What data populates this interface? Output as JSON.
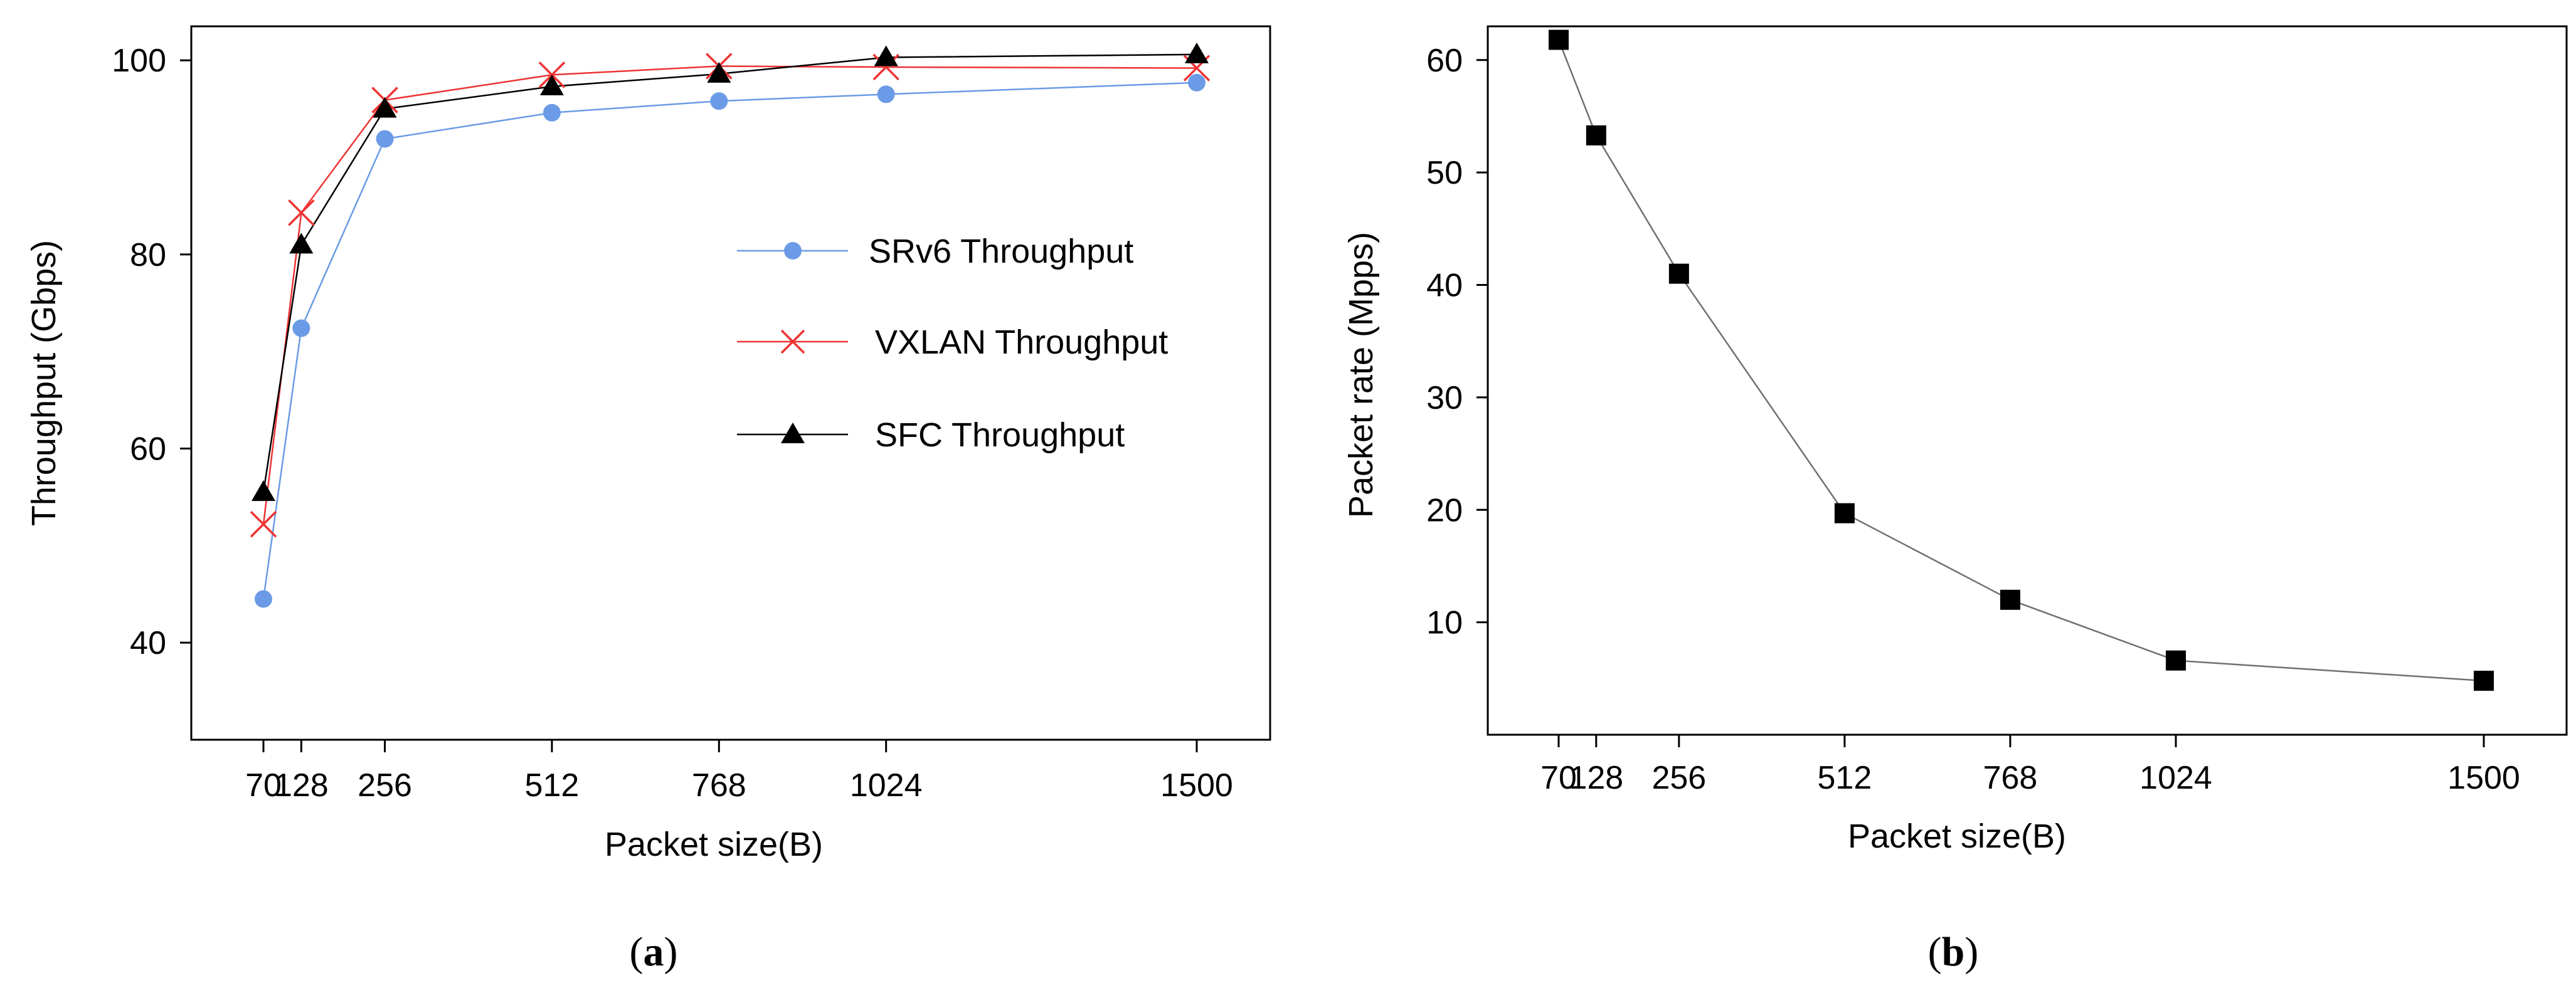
{
  "chart_data": [
    {
      "type": "line",
      "caption": {
        "open": "(",
        "letter": "a",
        "close": ")"
      },
      "xlabel": "Packet size(B)",
      "ylabel": "Throughput (Gbps)",
      "categories": [
        "70",
        "128",
        "256",
        "512",
        "768",
        "1024",
        "1500"
      ],
      "x": [
        70,
        128,
        256,
        512,
        768,
        1024,
        1500
      ],
      "ylim": [
        30,
        103.5
      ],
      "yticks": [
        40,
        60,
        80,
        100
      ],
      "grid": false,
      "legend_position": "right-center",
      "series": [
        {
          "name": "SRv6 Throughput",
          "marker": "circle",
          "color": "#6b9be6",
          "values": [
            44.5,
            72.4,
            91.9,
            94.6,
            95.8,
            96.5,
            97.7
          ]
        },
        {
          "name": "VXLAN Throughput",
          "marker": "x",
          "color": "#ee3333",
          "values": [
            52.2,
            84.3,
            95.9,
            98.5,
            99.4,
            99.3,
            99.2
          ]
        },
        {
          "name": "SFC Throughput",
          "marker": "triangle",
          "color": "#000000",
          "values": [
            55.5,
            81.0,
            95.0,
            97.3,
            98.6,
            100.3,
            100.6
          ]
        }
      ]
    },
    {
      "type": "line",
      "caption": {
        "open": "(",
        "letter": "b",
        "close": ")"
      },
      "xlabel": "Packet size(B)",
      "ylabel": "Packet rate (Mpps)",
      "categories": [
        "70",
        "128",
        "256",
        "512",
        "768",
        "1024",
        "1500"
      ],
      "x": [
        70,
        128,
        256,
        512,
        768,
        1024,
        1500
      ],
      "ylim": [
        0,
        63
      ],
      "yticks": [
        10,
        20,
        30,
        40,
        50,
        60
      ],
      "grid": false,
      "series": [
        {
          "name": "Packet rate",
          "marker": "square",
          "color": "#000000",
          "line_color": "#707070",
          "values": [
            61.8,
            53.3,
            41.0,
            19.7,
            12.0,
            6.6,
            4.8
          ]
        }
      ]
    }
  ]
}
